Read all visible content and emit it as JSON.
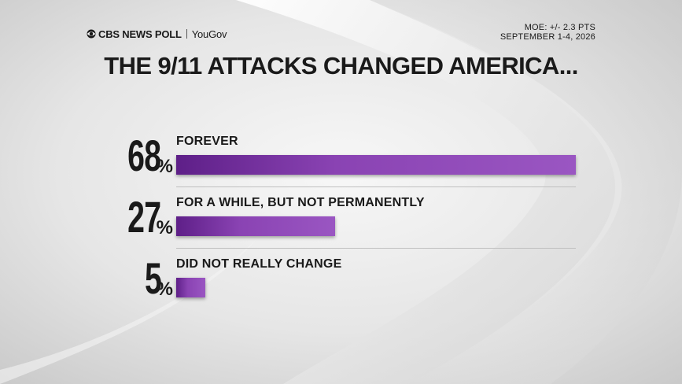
{
  "header": {
    "brand": "CBS NEWS POLL",
    "partner": "YouGov",
    "moe": "MOE: +/- 2.3 PTS",
    "dates": "SEPTEMBER 1-4, 2026"
  },
  "colors": {
    "bar_start": "#5e1f88",
    "bar_end": "#9a56c2",
    "background": "#dadada",
    "text": "#1a1a1a"
  },
  "icons": {
    "brand_logo": "cbs-eye-icon"
  },
  "chart_data": {
    "type": "bar",
    "orientation": "horizontal",
    "title": "THE 9/11 ATTACKS CHANGED AMERICA...",
    "categories": [
      "FOREVER",
      "FOR A WHILE, BUT NOT PERMANENTLY",
      "DID NOT REALLY CHANGE"
    ],
    "values": [
      68,
      27,
      5
    ],
    "value_labels": [
      "68",
      "27",
      "5"
    ],
    "unit": "%",
    "xlim": [
      0,
      68
    ],
    "grid": false,
    "legend": "none"
  }
}
